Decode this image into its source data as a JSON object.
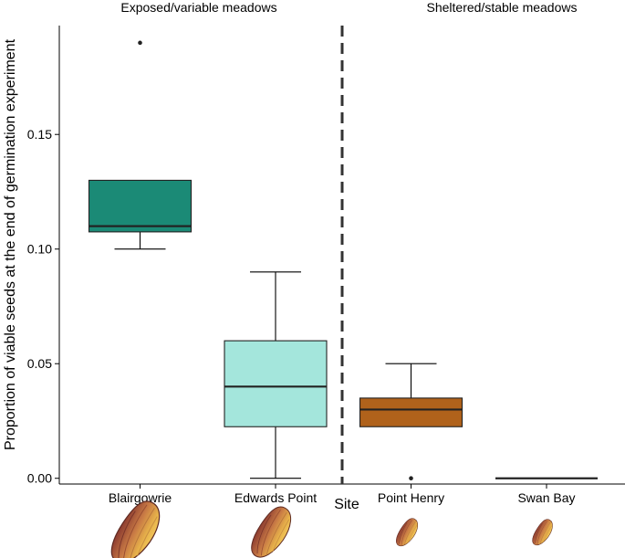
{
  "chart_data": {
    "type": "box",
    "title": "",
    "xlabel": "Site",
    "ylabel": "Proportion of viable seeds at the end of germination experiment",
    "ylim": [
      -0.0025,
      0.1975
    ],
    "yticks": [
      0.0,
      0.05,
      0.1,
      0.15
    ],
    "ytick_labels": [
      "0.00",
      "0.05",
      "0.10",
      "0.15"
    ],
    "group_divider_after_category": 2,
    "groups": [
      {
        "label": "Exposed/variable meadows",
        "categories": [
          "Blairgowrie",
          "Edwards Point"
        ]
      },
      {
        "label": "Sheltered/stable meadows",
        "categories": [
          "Point Henry",
          "Swan Bay"
        ]
      }
    ],
    "categories": [
      "Blairgowrie",
      "Edwards Point",
      "Point Henry",
      "Swan Bay"
    ],
    "boxes": [
      {
        "site": "Blairgowrie",
        "min": 0.1,
        "q1": 0.1075,
        "median": 0.11,
        "q3": 0.13,
        "max": 0.13,
        "outliers": [
          0.19
        ],
        "fill": "#1b8a76"
      },
      {
        "site": "Edwards Point",
        "min": 0.0,
        "q1": 0.0225,
        "median": 0.04,
        "q3": 0.06,
        "max": 0.09,
        "outliers": [],
        "fill": "#a4e6dc"
      },
      {
        "site": "Point Henry",
        "min": 0.0225,
        "q1": 0.0225,
        "median": 0.03,
        "q3": 0.035,
        "max": 0.05,
        "outliers": [
          0.0
        ],
        "fill": "#b0621b"
      },
      {
        "site": "Swan Bay",
        "min": 0.0,
        "q1": 0.0,
        "median": 0.0,
        "q3": 0.0,
        "max": 0.0,
        "outliers": [],
        "fill": "#b0621b"
      }
    ],
    "seed_icon_relative_size": [
      1.0,
      0.82,
      0.45,
      0.42
    ]
  }
}
